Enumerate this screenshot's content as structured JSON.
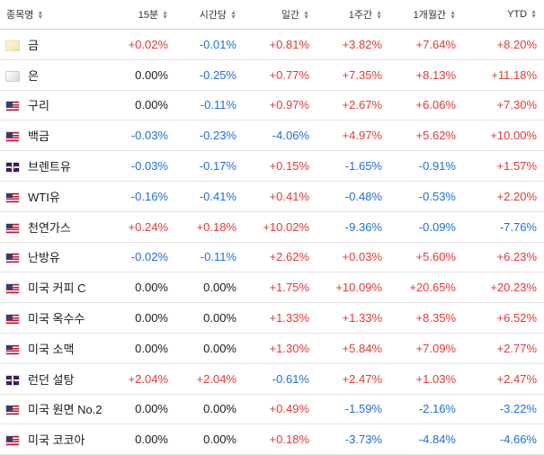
{
  "headers": [
    "종목명",
    "15분",
    "시간당",
    "일간",
    "1주간",
    "1개월간",
    "YTD"
  ],
  "colors": {
    "positive": "#e53935",
    "negative": "#1e6fd9",
    "neutral": "#1a1a1a"
  },
  "rows": [
    {
      "flag": "gold-icon",
      "name": "금",
      "values": [
        "+0.02%",
        "-0.01%",
        "+0.81%",
        "+3.82%",
        "+7.64%",
        "+8.20%"
      ]
    },
    {
      "flag": "silver-icon",
      "name": "은",
      "values": [
        "0.00%",
        "-0.25%",
        "+0.77%",
        "+7.35%",
        "+8.13%",
        "+11.18%"
      ]
    },
    {
      "flag": "us-flag-icon",
      "name": "구리",
      "values": [
        "0.00%",
        "-0.11%",
        "+0.97%",
        "+2.67%",
        "+6.06%",
        "+7.30%"
      ]
    },
    {
      "flag": "us-flag-icon",
      "name": "백금",
      "values": [
        "-0.03%",
        "-0.23%",
        "-4.06%",
        "+4.97%",
        "+5.62%",
        "+10.00%"
      ]
    },
    {
      "flag": "uk-flag-icon",
      "name": "브렌트유",
      "values": [
        "-0.03%",
        "-0.17%",
        "+0.15%",
        "-1.65%",
        "-0.91%",
        "+1.57%"
      ]
    },
    {
      "flag": "us-flag-icon",
      "name": "WTI유",
      "values": [
        "-0.16%",
        "-0.41%",
        "+0.41%",
        "-0.48%",
        "-0.53%",
        "+2.20%"
      ]
    },
    {
      "flag": "us-flag-icon",
      "name": "천연가스",
      "values": [
        "+0.24%",
        "+0.18%",
        "+10.02%",
        "-9.36%",
        "-0.09%",
        "-7.76%"
      ]
    },
    {
      "flag": "us-flag-icon",
      "name": "난방유",
      "values": [
        "-0.02%",
        "-0.11%",
        "+2.62%",
        "+0.03%",
        "+5.60%",
        "+6.23%"
      ]
    },
    {
      "flag": "us-flag-icon",
      "name": "미국 커피 C",
      "values": [
        "0.00%",
        "0.00%",
        "+1.75%",
        "+10.09%",
        "+20.65%",
        "+20.23%"
      ]
    },
    {
      "flag": "us-flag-icon",
      "name": "미국 옥수수",
      "values": [
        "0.00%",
        "0.00%",
        "+1.33%",
        "+1.33%",
        "+8.35%",
        "+6.52%"
      ]
    },
    {
      "flag": "us-flag-icon",
      "name": "미국 소맥",
      "values": [
        "0.00%",
        "0.00%",
        "+1.30%",
        "+5.84%",
        "+7.09%",
        "+2.77%"
      ]
    },
    {
      "flag": "uk-flag-icon",
      "name": "런던 설탕",
      "values": [
        "+2.04%",
        "+2.04%",
        "-0.61%",
        "+2.47%",
        "+1.03%",
        "+2.47%"
      ]
    },
    {
      "flag": "us-flag-icon",
      "name": "미국 원면 No.2",
      "values": [
        "0.00%",
        "0.00%",
        "+0.49%",
        "-1.59%",
        "-2.16%",
        "-3.22%"
      ]
    },
    {
      "flag": "us-flag-icon",
      "name": "미국 코코아",
      "values": [
        "0.00%",
        "0.00%",
        "+0.18%",
        "-3.73%",
        "-4.84%",
        "-4.66%"
      ]
    }
  ]
}
